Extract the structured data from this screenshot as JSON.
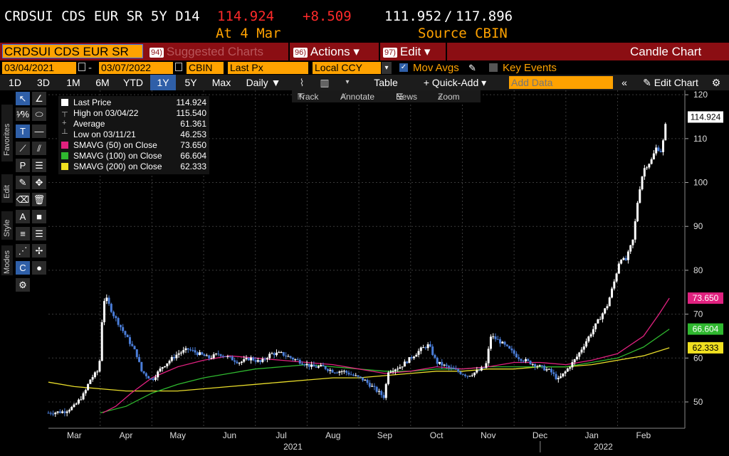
{
  "quote": {
    "ticker": "CRDSUI CDS EUR SR 5Y D14",
    "last": "114.924",
    "change": "+8.509",
    "range_low": "111.952",
    "range_sep": "/",
    "range_high": "117.896",
    "as_of": "At 4 Mar",
    "source": "Source CBIN"
  },
  "command": {
    "security": "CRDSUI CDS EUR SR",
    "suggested_num": "94)",
    "suggested_label": "Suggested Charts",
    "actions_num": "96)",
    "actions_label": "Actions ▾",
    "edit_num": "97)",
    "edit_label": "Edit ▾",
    "chart_type": "Candle Chart"
  },
  "params": {
    "start_date": "03/04/2021",
    "end_date": "03/07/2022",
    "source": "CBIN",
    "field": "Last Px",
    "currency": "Local CCY",
    "mov_avgs": "Mov Avgs",
    "key_events": "Key Events"
  },
  "periods": [
    "1D",
    "3D",
    "1M",
    "6M",
    "YTD",
    "1Y",
    "5Y",
    "Max"
  ],
  "selected_period": "1Y",
  "toolbar": {
    "frequency": "Daily ▼",
    "table": "Table",
    "quick_add": "+ Quick-Add ▾",
    "add_data_placeholder": "Add Data",
    "edit_chart": "Edit Chart",
    "track": "Track",
    "annotate": "Annotate",
    "news": "News",
    "zoom": "Zoom"
  },
  "side_tabs": {
    "favorites": "Favorites",
    "edit": "Edit",
    "style": "Style",
    "modes": "Modes"
  },
  "legend": [
    {
      "name": "Last Price",
      "value": "114.924",
      "color": "#ffffff"
    },
    {
      "name": "High on 03/04/22",
      "value": "115.540"
    },
    {
      "name": "Average",
      "value": "61.361"
    },
    {
      "name": "Low on 03/11/21",
      "value": "46.253"
    },
    {
      "name": "SMAVG (50)  on Close",
      "value": "73.650",
      "color": "#e0217f"
    },
    {
      "name": "SMAVG (100)  on Close",
      "value": "66.604",
      "color": "#2fb82f"
    },
    {
      "name": "SMAVG (200)  on Close",
      "value": "62.333",
      "color": "#f0e020"
    }
  ],
  "chart_data": {
    "type": "candlestick",
    "y_ticks": [
      50,
      60,
      70,
      80,
      90,
      100,
      110,
      120
    ],
    "ylim": [
      44,
      121
    ],
    "x_month_labels": [
      "Mar",
      "Apr",
      "May",
      "Jun",
      "Jul",
      "Aug",
      "Sep",
      "Oct",
      "Nov",
      "Dec",
      "Jan",
      "Feb"
    ],
    "x_month_pos": [
      0.5,
      1.5,
      2.5,
      3.5,
      4.5,
      5.5,
      6.5,
      7.5,
      8.5,
      9.5,
      10.5,
      11.5
    ],
    "year_labels": [
      {
        "label": "2021",
        "pos": 5.0
      },
      {
        "label": "2022",
        "pos": 11.0
      }
    ],
    "xlim": [
      0,
      12.3
    ],
    "price_close": [
      [
        0.0,
        47.5
      ],
      [
        0.3,
        47.8
      ],
      [
        0.5,
        49
      ],
      [
        0.7,
        52
      ],
      [
        0.8,
        55
      ],
      [
        0.95,
        57
      ],
      [
        1.0,
        60
      ],
      [
        1.05,
        72
      ],
      [
        1.1,
        74
      ],
      [
        1.25,
        70
      ],
      [
        1.4,
        67
      ],
      [
        1.55,
        64
      ],
      [
        1.7,
        61
      ],
      [
        1.8,
        57
      ],
      [
        2.0,
        55
      ],
      [
        2.2,
        58
      ],
      [
        2.4,
        60
      ],
      [
        2.5,
        61
      ],
      [
        2.7,
        62
      ],
      [
        2.9,
        61
      ],
      [
        3.1,
        60
      ],
      [
        3.3,
        61
      ],
      [
        3.5,
        60
      ],
      [
        3.7,
        59
      ],
      [
        3.9,
        60
      ],
      [
        4.1,
        59
      ],
      [
        4.3,
        61
      ],
      [
        4.5,
        61
      ],
      [
        4.7,
        60
      ],
      [
        4.9,
        59
      ],
      [
        5.1,
        58
      ],
      [
        5.3,
        58
      ],
      [
        5.5,
        57
      ],
      [
        5.7,
        57
      ],
      [
        5.9,
        56
      ],
      [
        6.1,
        55
      ],
      [
        6.3,
        53
      ],
      [
        6.5,
        51
      ],
      [
        6.55,
        57
      ],
      [
        6.8,
        58
      ],
      [
        7.0,
        60
      ],
      [
        7.2,
        62
      ],
      [
        7.35,
        63
      ],
      [
        7.5,
        59
      ],
      [
        7.7,
        58
      ],
      [
        7.9,
        57
      ],
      [
        8.1,
        56
      ],
      [
        8.3,
        57
      ],
      [
        8.45,
        58
      ],
      [
        8.55,
        65
      ],
      [
        8.7,
        64
      ],
      [
        8.9,
        62
      ],
      [
        9.1,
        60
      ],
      [
        9.3,
        59
      ],
      [
        9.5,
        58
      ],
      [
        9.7,
        57
      ],
      [
        9.85,
        55
      ],
      [
        10.0,
        57
      ],
      [
        10.2,
        60
      ],
      [
        10.4,
        64
      ],
      [
        10.6,
        68
      ],
      [
        10.8,
        72
      ],
      [
        10.95,
        78
      ],
      [
        11.05,
        83
      ],
      [
        11.15,
        82
      ],
      [
        11.3,
        87
      ],
      [
        11.4,
        97
      ],
      [
        11.5,
        103
      ],
      [
        11.65,
        105
      ],
      [
        11.75,
        108
      ],
      [
        11.85,
        107
      ],
      [
        11.95,
        115
      ]
    ],
    "smavg50": [
      [
        1.05,
        47.5
      ],
      [
        1.3,
        49
      ],
      [
        1.6,
        52
      ],
      [
        2.0,
        55.5
      ],
      [
        2.5,
        58
      ],
      [
        3.0,
        59.5
      ],
      [
        3.5,
        60.5
      ],
      [
        4.0,
        60
      ],
      [
        4.5,
        59.5
      ],
      [
        5.0,
        59
      ],
      [
        5.5,
        58.5
      ],
      [
        6.0,
        57.5
      ],
      [
        6.5,
        56.5
      ],
      [
        7.0,
        57
      ],
      [
        7.5,
        58
      ],
      [
        8.0,
        57.5
      ],
      [
        8.5,
        58
      ],
      [
        9.0,
        59
      ],
      [
        9.5,
        59
      ],
      [
        10.0,
        58.5
      ],
      [
        10.5,
        59.5
      ],
      [
        11.0,
        61
      ],
      [
        11.5,
        65
      ],
      [
        11.8,
        70
      ],
      [
        12.0,
        73.65
      ]
    ],
    "smavg100": [
      [
        1.0,
        47.5
      ],
      [
        1.5,
        49
      ],
      [
        2.0,
        52
      ],
      [
        2.5,
        54
      ],
      [
        3.0,
        55.5
      ],
      [
        3.5,
        56.5
      ],
      [
        4.0,
        57.5
      ],
      [
        4.5,
        58
      ],
      [
        5.0,
        58.5
      ],
      [
        5.5,
        58
      ],
      [
        6.0,
        57.5
      ],
      [
        6.5,
        57
      ],
      [
        7.0,
        57
      ],
      [
        7.5,
        57.5
      ],
      [
        8.0,
        57.5
      ],
      [
        8.5,
        58
      ],
      [
        9.0,
        58
      ],
      [
        9.5,
        58
      ],
      [
        10.0,
        58
      ],
      [
        10.5,
        59
      ],
      [
        11.0,
        60
      ],
      [
        11.5,
        62.5
      ],
      [
        12.0,
        66.6
      ]
    ],
    "smavg200": [
      [
        0.0,
        54.5
      ],
      [
        0.5,
        53.5
      ],
      [
        1.0,
        53
      ],
      [
        1.5,
        52.5
      ],
      [
        2.0,
        52.5
      ],
      [
        2.5,
        52.5
      ],
      [
        3.0,
        53
      ],
      [
        3.5,
        53.5
      ],
      [
        4.0,
        54
      ],
      [
        4.5,
        54.5
      ],
      [
        5.0,
        55
      ],
      [
        5.5,
        55.5
      ],
      [
        6.0,
        55.5
      ],
      [
        6.5,
        56
      ],
      [
        7.0,
        56.5
      ],
      [
        7.5,
        57
      ],
      [
        8.0,
        57
      ],
      [
        8.5,
        57.5
      ],
      [
        9.0,
        57.5
      ],
      [
        9.5,
        58
      ],
      [
        10.0,
        58
      ],
      [
        10.5,
        58.5
      ],
      [
        11.0,
        59.5
      ],
      [
        11.5,
        60.5
      ],
      [
        12.0,
        62.33
      ]
    ],
    "last_tags": [
      {
        "value": "114.924",
        "y": 114.924,
        "bg": "#ffffff",
        "fg": "#000000"
      },
      {
        "value": "73.650",
        "y": 73.65,
        "bg": "#e0217f",
        "fg": "#ffffff"
      },
      {
        "value": "66.604",
        "y": 66.604,
        "bg": "#2fb82f",
        "fg": "#ffffff"
      },
      {
        "value": "62.333",
        "y": 62.333,
        "bg": "#f0e020",
        "fg": "#000000"
      }
    ]
  }
}
